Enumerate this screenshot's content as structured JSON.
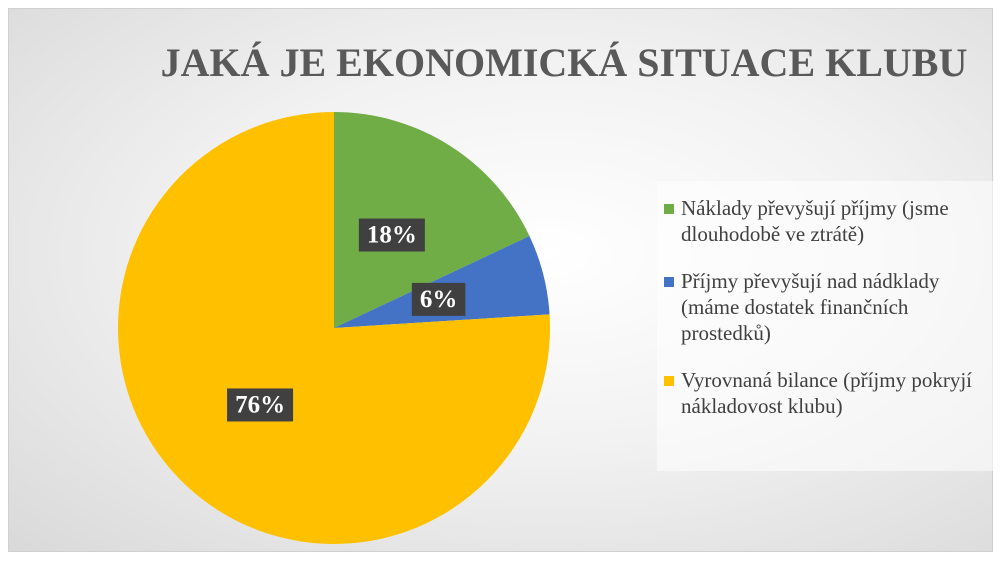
{
  "chart_data": {
    "type": "pie",
    "title": "JAKÁ JE EKONOMICKÁ SITUACE KLUBU",
    "categories": [
      "Náklady převyšují příjmy (jsme dlouhodobě ve ztrátě)",
      "Příjmy převyšují nad nádklady (máme dostatek finančních prostedků)",
      "Vyrovnaná bilance (příjmy pokryjí nákladovost klubu)"
    ],
    "values": [
      18,
      6,
      76
    ],
    "value_labels": [
      "18%",
      "6%",
      "76%"
    ],
    "colors": [
      "#70ad47",
      "#4472c4",
      "#ffc000"
    ],
    "legend": "right"
  }
}
